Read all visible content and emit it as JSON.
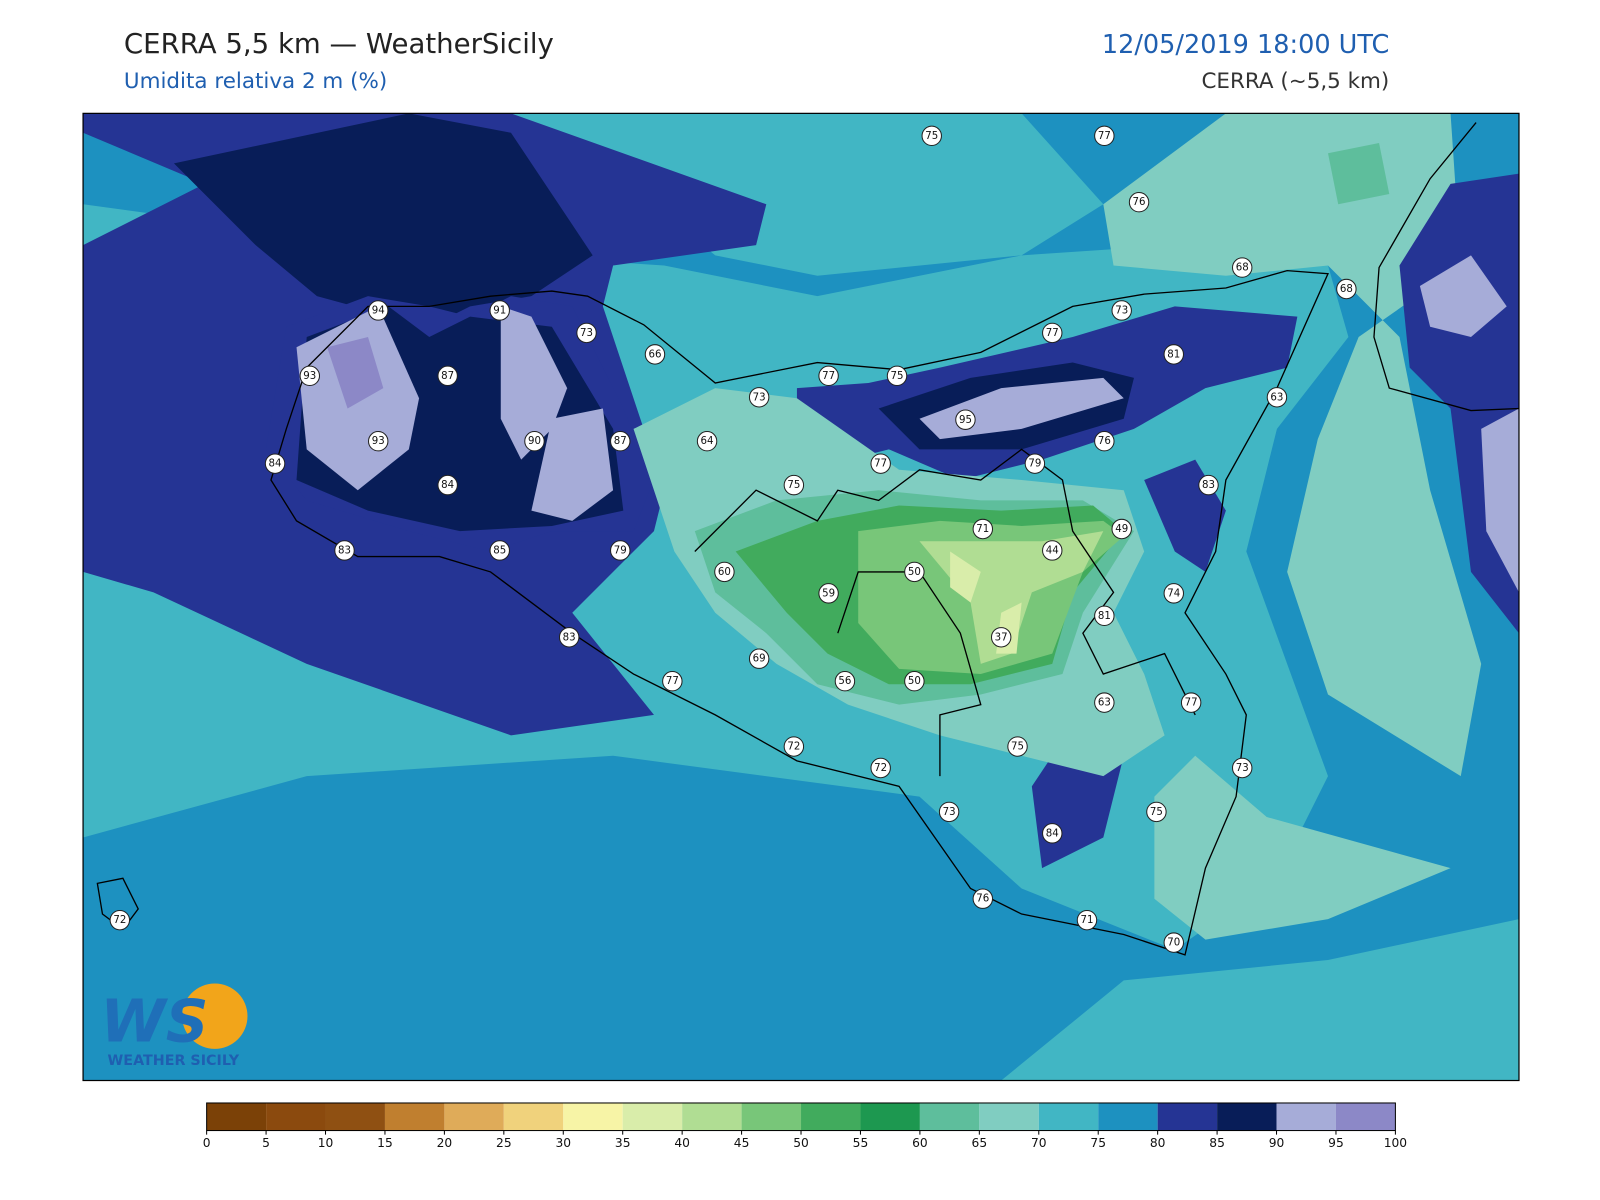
{
  "header": {
    "title": "CERRA 5,5 km — WeatherSicily",
    "subtitle": "Umidita relativa 2 m (%)",
    "datetime": "12/05/2019 18:00 UTC",
    "model": "CERRA (~5,5 km)"
  },
  "stations": [
    75,
    77,
    76,
    68,
    68,
    73,
    77,
    81,
    94,
    91,
    73,
    66,
    93,
    87,
    77,
    75,
    73,
    63,
    95,
    93,
    90,
    87,
    64,
    76,
    84,
    77,
    79,
    84,
    75,
    83,
    71,
    49,
    83,
    85,
    79,
    44,
    60,
    50,
    59,
    74,
    81,
    83,
    37,
    69,
    77,
    56,
    50,
    63,
    77,
    72,
    75,
    72,
    73,
    73,
    75,
    84,
    76,
    71,
    70,
    72
  ],
  "colorbar": {
    "ticks": [
      0,
      5,
      10,
      15,
      20,
      25,
      30,
      35,
      40,
      45,
      50,
      55,
      60,
      65,
      70,
      75,
      80,
      85,
      90,
      95,
      100
    ],
    "colors": [
      "#7b4107",
      "#8b4a0e",
      "#8f5012",
      "#c07f2f",
      "#dfab59",
      "#f0d27c",
      "#f7f4a6",
      "#d9edaa",
      "#b0dd93",
      "#78c679",
      "#41ab5d",
      "#1d9850",
      "#5ebe9c",
      "#80cdc1",
      "#41b6c4",
      "#1d91c0",
      "#253494",
      "#081d58",
      "#a6acd8",
      "#8c88c7"
    ]
  },
  "logo": {
    "mark": "WS",
    "text": "WEATHER SICILY"
  }
}
